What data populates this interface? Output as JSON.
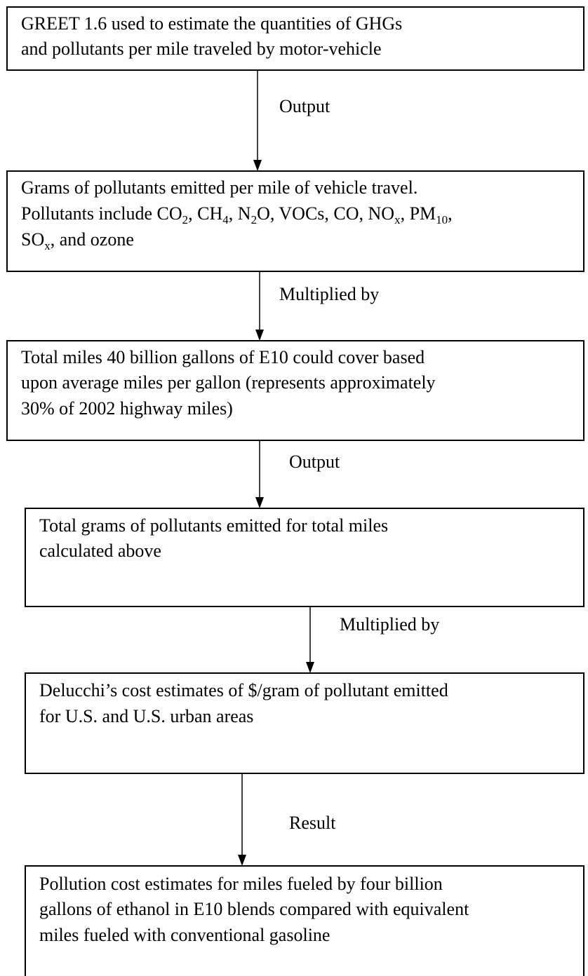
{
  "boxes": [
    {
      "lines": [
        [
          {
            "text": "GREET 1.6 used to estimate the quantities of GHGs"
          }
        ],
        [
          {
            "text": "and pollutants per mile traveled by motor-vehicle"
          }
        ]
      ]
    },
    {
      "lines": [
        [
          {
            "text": "Grams of pollutants emitted per mile of vehicle travel."
          }
        ],
        [
          {
            "text": "Pollutants include CO"
          },
          {
            "sub": "2"
          },
          {
            "text": ", CH"
          },
          {
            "sub": "4"
          },
          {
            "text": ", N"
          },
          {
            "sub": "2"
          },
          {
            "text": "O, VOCs, CO, NO"
          },
          {
            "sub": "x"
          },
          {
            "text": ", PM"
          },
          {
            "sub": "10"
          },
          {
            "text": ","
          }
        ],
        [
          {
            "text": "SO"
          },
          {
            "sub": "x"
          },
          {
            "text": ", and ozone"
          }
        ]
      ]
    },
    {
      "lines": [
        [
          {
            "text": "Total miles 40 billion gallons of E10 could cover based"
          }
        ],
        [
          {
            "text": "upon average miles per gallon (represents approximately"
          }
        ],
        [
          {
            "text": "30% of 2002 highway miles)"
          }
        ]
      ]
    },
    {
      "lines": [
        [
          {
            "text": "Total grams of pollutants emitted for total miles"
          }
        ],
        [
          {
            "text": "calculated above"
          }
        ]
      ]
    },
    {
      "lines": [
        [
          {
            "text": "Delucchi’s cost estimates of $/gram of pollutant emitted"
          }
        ],
        [
          {
            "text": "for U.S. and U.S. urban areas"
          }
        ]
      ]
    },
    {
      "lines": [
        [
          {
            "text": "Pollution cost estimates for miles fueled by four billion"
          }
        ],
        [
          {
            "text": "gallons of ethanol in E10 blends compared with equivalent"
          }
        ],
        [
          {
            "text": "miles fueled with conventional gasoline"
          }
        ]
      ]
    }
  ],
  "connectors": [
    {
      "label": "Output"
    },
    {
      "label": "Multiplied by"
    },
    {
      "label": "Output"
    },
    {
      "label": "Multiplied by"
    },
    {
      "label": "Result"
    }
  ]
}
